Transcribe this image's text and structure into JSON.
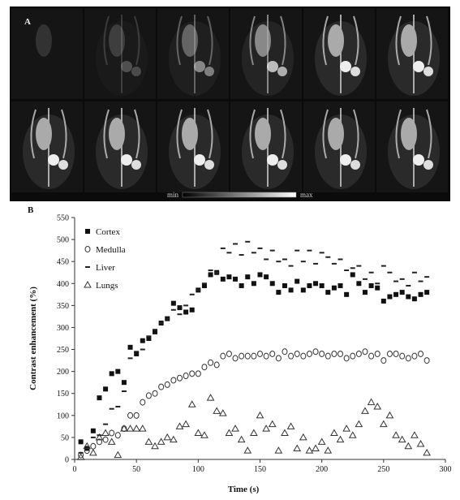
{
  "panel_a": {
    "label": "A",
    "scale_min": "min",
    "scale_max": "max"
  },
  "chart_data": {
    "type": "scatter",
    "panel_label": "B",
    "xlabel": "Time (s)",
    "ylabel": "Contrast enhancement (%)",
    "xlim": [
      0,
      300
    ],
    "xticks": [
      0,
      50,
      100,
      150,
      200,
      250,
      300
    ],
    "ylim": [
      0,
      550
    ],
    "yticks": [
      0,
      50,
      100,
      150,
      200,
      250,
      300,
      350,
      400,
      450,
      500,
      550
    ],
    "grid": false,
    "legend": "upper left",
    "x": [
      5,
      10,
      15,
      20,
      25,
      30,
      35,
      40,
      45,
      50,
      55,
      60,
      65,
      70,
      75,
      80,
      85,
      90,
      95,
      100,
      105,
      110,
      115,
      120,
      125,
      130,
      135,
      140,
      145,
      150,
      155,
      160,
      165,
      170,
      175,
      180,
      185,
      190,
      195,
      200,
      205,
      210,
      215,
      220,
      225,
      230,
      235,
      240,
      245,
      250,
      255,
      260,
      265,
      270,
      275,
      280,
      285
    ],
    "series": [
      {
        "name": "Cortex",
        "color": "#111111",
        "marker": "square",
        "values": [
          40,
          25,
          65,
          140,
          160,
          195,
          200,
          175,
          255,
          240,
          270,
          275,
          290,
          310,
          320,
          355,
          345,
          335,
          340,
          385,
          395,
          420,
          425,
          410,
          415,
          410,
          395,
          415,
          400,
          420,
          415,
          400,
          380,
          395,
          385,
          405,
          385,
          395,
          400,
          395,
          380,
          390,
          395,
          375,
          420,
          400,
          380,
          395,
          390,
          360,
          370,
          375,
          380,
          370,
          365,
          375,
          380
        ]
      },
      {
        "name": "Medulla",
        "color": "#333333",
        "marker": "circle",
        "values": [
          10,
          20,
          30,
          40,
          45,
          60,
          55,
          70,
          100,
          100,
          130,
          145,
          150,
          165,
          170,
          180,
          185,
          190,
          195,
          195,
          210,
          220,
          215,
          235,
          240,
          230,
          235,
          235,
          235,
          240,
          235,
          240,
          230,
          245,
          235,
          240,
          235,
          240,
          245,
          240,
          235,
          240,
          240,
          230,
          235,
          240,
          245,
          235,
          240,
          225,
          240,
          240,
          235,
          230,
          235,
          240,
          225
        ]
      },
      {
        "name": "Liver",
        "color": "#222222",
        "marker": "dash",
        "values": [
          15,
          25,
          50,
          55,
          80,
          115,
          120,
          155,
          230,
          245,
          250,
          280,
          295,
          310,
          320,
          340,
          330,
          350,
          375,
          385,
          400,
          430,
          425,
          480,
          470,
          490,
          465,
          495,
          470,
          480,
          455,
          475,
          450,
          455,
          440,
          475,
          450,
          475,
          445,
          470,
          460,
          445,
          455,
          430,
          435,
          440,
          410,
          425,
          400,
          440,
          425,
          405,
          410,
          395,
          425,
          405,
          415
        ]
      },
      {
        "name": "Lungs",
        "color": "#333333",
        "marker": "triangle",
        "values": [
          5,
          30,
          15,
          50,
          60,
          40,
          10,
          70,
          70,
          70,
          70,
          40,
          30,
          40,
          50,
          45,
          75,
          80,
          125,
          60,
          55,
          140,
          110,
          105,
          60,
          70,
          45,
          20,
          60,
          100,
          70,
          80,
          20,
          60,
          75,
          25,
          50,
          20,
          25,
          40,
          20,
          60,
          45,
          70,
          55,
          80,
          110,
          130,
          120,
          80,
          100,
          55,
          45,
          30,
          55,
          35,
          15
        ]
      }
    ]
  }
}
